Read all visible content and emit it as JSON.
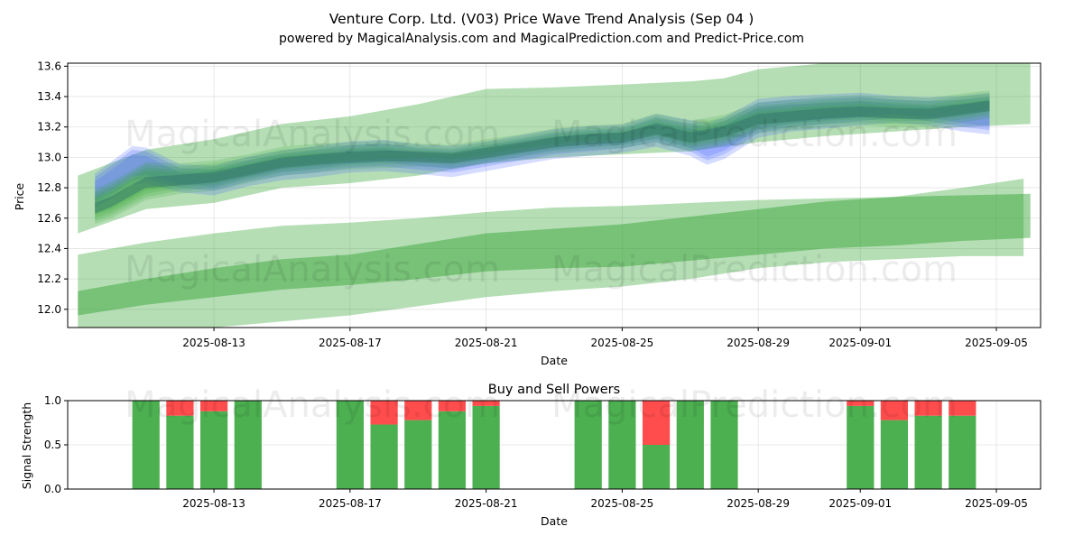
{
  "title": "Venture Corp. Ltd. (V03) Price Wave Trend Analysis (Sep 04 )",
  "subtitle": "powered by MagicalAnalysis.com and MagicalPrediction.com and Predict-Price.com",
  "watermarks": [
    "MagicalAnalysis.com",
    "MagicalPrediction.com"
  ],
  "chart_data": [
    {
      "type": "area",
      "name": "price-chart",
      "xlabel": "Date",
      "ylabel": "Price",
      "grid": true,
      "xlim_days": [
        -3.3,
        25.3
      ],
      "ylim": [
        11.88,
        13.62
      ],
      "x_ticks": [
        {
          "day": 1,
          "label": "2025-08-13"
        },
        {
          "day": 5,
          "label": "2025-08-17"
        },
        {
          "day": 9,
          "label": "2025-08-21"
        },
        {
          "day": 13,
          "label": "2025-08-25"
        },
        {
          "day": 17,
          "label": "2025-08-29"
        },
        {
          "day": 20,
          "label": "2025-09-01"
        },
        {
          "day": 24,
          "label": "2025-09-05"
        }
      ],
      "y_ticks": [
        12.0,
        12.2,
        12.4,
        12.6,
        12.8,
        13.0,
        13.2,
        13.4,
        13.6
      ],
      "upper_outer_band": {
        "color": "#2ca02c",
        "opacity": 0.35,
        "days": [
          -3.0,
          -1.0,
          1.0,
          3.0,
          5.0,
          7.0,
          9.0,
          11.0,
          13.0,
          15.0,
          16.0,
          17.0,
          19.0,
          21.0,
          23.0,
          25.0
        ],
        "upper": [
          12.88,
          13.05,
          13.12,
          13.22,
          13.27,
          13.35,
          13.45,
          13.46,
          13.48,
          13.5,
          13.52,
          13.58,
          13.62,
          13.65,
          13.66,
          13.66
        ],
        "lower": [
          12.5,
          12.66,
          12.7,
          12.8,
          12.83,
          12.88,
          12.96,
          13.0,
          13.02,
          13.04,
          13.07,
          13.1,
          13.14,
          13.17,
          13.2,
          13.22
        ]
      },
      "upper_cluster": {
        "color": "#2ca02c",
        "opacity": 0.18,
        "days": [
          -2.5,
          -2.0,
          -1.0,
          0.0,
          1.0,
          2.0,
          3.0,
          4.0,
          5.0,
          6.0,
          7.0,
          8.0,
          9.0,
          10.0,
          11.0,
          12.0,
          13.0,
          14.0,
          15.0,
          16.0,
          17.0,
          18.0,
          19.0,
          20.0,
          21.0,
          22.0,
          23.0,
          23.8
        ],
        "upper": [
          12.75,
          12.8,
          12.93,
          12.92,
          12.94,
          12.98,
          13.03,
          13.05,
          13.06,
          13.07,
          13.05,
          13.04,
          13.08,
          13.11,
          13.15,
          13.17,
          13.18,
          13.25,
          13.2,
          13.24,
          13.32,
          13.34,
          13.36,
          13.37,
          13.36,
          13.35,
          13.38,
          13.4
        ],
        "lower": [
          12.58,
          12.62,
          12.74,
          12.78,
          12.8,
          12.85,
          12.9,
          12.92,
          12.94,
          12.95,
          12.96,
          12.95,
          12.98,
          13.02,
          13.05,
          13.07,
          13.08,
          13.12,
          13.06,
          13.1,
          13.18,
          13.2,
          13.22,
          13.23,
          13.22,
          13.22,
          13.25,
          13.28
        ]
      },
      "upper_blue": {
        "color": "#4060ff",
        "opacity": 0.22,
        "days": [
          -2.5,
          -2.0,
          -1.4,
          -1.0,
          0.0,
          1.0,
          2.0,
          3.0,
          4.0,
          5.0,
          6.0,
          7.0,
          8.0,
          9.0,
          10.0,
          11.0,
          12.0,
          13.0,
          14.0,
          15.0,
          15.5,
          16.0,
          17.0,
          18.0,
          19.0,
          20.0,
          21.0,
          22.0,
          23.0,
          23.8
        ],
        "upper": [
          12.87,
          12.95,
          13.05,
          13.04,
          12.93,
          12.92,
          12.98,
          13.02,
          13.05,
          13.08,
          13.09,
          13.06,
          13.05,
          13.08,
          13.12,
          13.16,
          13.18,
          13.19,
          13.26,
          13.22,
          13.2,
          13.24,
          13.36,
          13.38,
          13.39,
          13.4,
          13.38,
          13.37,
          13.38,
          13.4
        ],
        "lower": [
          12.7,
          12.76,
          12.85,
          12.86,
          12.8,
          12.78,
          12.84,
          12.88,
          12.9,
          12.93,
          12.94,
          12.92,
          12.9,
          12.94,
          12.98,
          13.02,
          13.04,
          13.06,
          13.1,
          13.04,
          12.98,
          13.02,
          13.16,
          13.2,
          13.22,
          13.24,
          13.26,
          13.24,
          13.2,
          13.18
        ]
      },
      "lower_outer_band": {
        "color": "#2ca02c",
        "opacity": 0.35,
        "days": [
          -3.0,
          -1.0,
          1.0,
          3.0,
          5.0,
          7.0,
          9.0,
          11.0,
          13.0,
          15.0,
          17.0,
          19.0,
          21.0,
          23.0,
          24.8
        ],
        "upper": [
          12.36,
          12.44,
          12.5,
          12.55,
          12.57,
          12.6,
          12.64,
          12.67,
          12.68,
          12.7,
          12.72,
          12.73,
          12.74,
          12.8,
          12.86
        ],
        "lower": [
          11.85,
          11.85,
          11.88,
          11.92,
          11.96,
          12.02,
          12.08,
          12.12,
          12.15,
          12.2,
          12.27,
          12.31,
          12.33,
          12.35,
          12.35
        ]
      },
      "lower_inner_band": {
        "color": "#2ca02c",
        "opacity": 0.45,
        "days": [
          -3.0,
          -1.0,
          1.0,
          3.0,
          5.0,
          7.0,
          9.0,
          11.0,
          13.0,
          15.0,
          17.0,
          19.0,
          21.0,
          23.0,
          25.0
        ],
        "upper": [
          12.12,
          12.2,
          12.27,
          12.33,
          12.36,
          12.43,
          12.5,
          12.53,
          12.56,
          12.61,
          12.66,
          12.71,
          12.74,
          12.75,
          12.76
        ],
        "lower": [
          11.96,
          12.03,
          12.08,
          12.13,
          12.16,
          12.2,
          12.25,
          12.27,
          12.28,
          12.32,
          12.36,
          12.4,
          12.42,
          12.45,
          12.47
        ]
      }
    },
    {
      "type": "bar",
      "name": "buy-sell-powers",
      "title": "Buy and Sell Powers",
      "xlabel": "Date",
      "ylabel": "Signal Strength",
      "grid": true,
      "xlim_days": [
        -3.3,
        25.3
      ],
      "ylim": [
        0,
        1.0
      ],
      "y_ticks": [
        0.0,
        0.5,
        1.0
      ],
      "x_ticks": [
        {
          "day": 1,
          "label": "2025-08-13"
        },
        {
          "day": 5,
          "label": "2025-08-17"
        },
        {
          "day": 9,
          "label": "2025-08-21"
        },
        {
          "day": 13,
          "label": "2025-08-25"
        },
        {
          "day": 17,
          "label": "2025-08-29"
        },
        {
          "day": 20,
          "label": "2025-09-01"
        },
        {
          "day": 24,
          "label": "2025-09-05"
        }
      ],
      "buy_color": "#4caf50",
      "sell_color": "#ff4c4c",
      "series": [
        {
          "name": "Buy",
          "values": [
            1.0,
            0.83,
            0.88,
            1.0,
            1.0,
            0.73,
            0.78,
            0.88,
            0.94,
            1.0,
            1.0,
            0.5,
            1.0,
            1.0,
            0.94,
            0.78,
            0.83,
            0.83
          ]
        },
        {
          "name": "Sell",
          "values": [
            0.0,
            0.17,
            0.12,
            0.0,
            0.0,
            0.27,
            0.22,
            0.12,
            0.06,
            0.0,
            0.0,
            0.5,
            0.0,
            0.0,
            0.06,
            0.22,
            0.17,
            0.17
          ]
        }
      ],
      "bar_days": [
        -1.0,
        0.0,
        1.0,
        2.0,
        5.0,
        6.0,
        7.0,
        8.0,
        9.0,
        12.0,
        13.0,
        14.0,
        15.0,
        16.0,
        20.0,
        21.0,
        22.0,
        23.0
      ]
    }
  ]
}
